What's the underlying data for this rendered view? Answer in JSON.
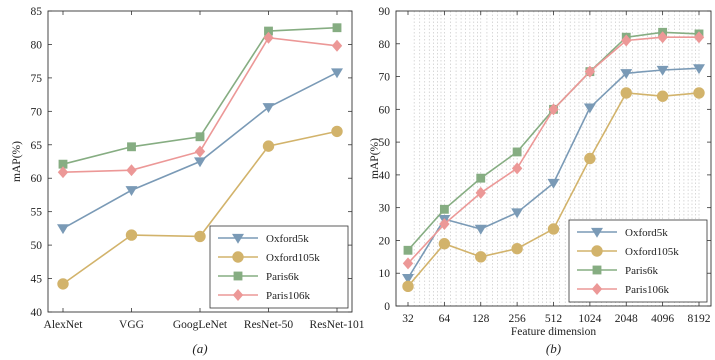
{
  "chart_data": [
    {
      "type": "line",
      "caption": "(a)",
      "categories": [
        "AlexNet",
        "VGG",
        "GoogLeNet",
        "ResNet-50",
        "ResNet-101"
      ],
      "series": [
        {
          "name": "Oxford5k",
          "color": "#7a9ab6",
          "marker": "triangle-down",
          "values": [
            52.5,
            58.2,
            62.5,
            70.6,
            75.8
          ]
        },
        {
          "name": "Oxford105k",
          "color": "#d2b36b",
          "marker": "circle",
          "values": [
            44.2,
            51.5,
            51.3,
            64.8,
            67.0
          ]
        },
        {
          "name": "Paris6k",
          "color": "#86ad82",
          "marker": "square",
          "values": [
            62.1,
            64.7,
            66.2,
            82.0,
            82.5
          ]
        },
        {
          "name": "Paris106k",
          "color": "#ec9897",
          "marker": "diamond",
          "values": [
            60.9,
            61.2,
            64.0,
            81.0,
            79.8
          ]
        }
      ],
      "xlabel": "",
      "ylabel": "mAP(%)",
      "ylim": [
        40,
        85
      ],
      "yticks": [
        40,
        45,
        50,
        55,
        60,
        65,
        70,
        75,
        80,
        85
      ],
      "grid": false,
      "legend": "bottom-right"
    },
    {
      "type": "line",
      "caption": "(b)",
      "xscale": "log2",
      "x": [
        32,
        64,
        128,
        256,
        512,
        1024,
        2048,
        4096,
        8192
      ],
      "xticks": [
        "32",
        "64",
        "128",
        "256",
        "512",
        "1024",
        "2048",
        "4096",
        "8192"
      ],
      "series": [
        {
          "name": "Oxford5k",
          "color": "#7a9ab6",
          "marker": "triangle-down",
          "values": [
            8.5,
            26.5,
            23.5,
            28.5,
            37.5,
            60.5,
            71.0,
            72.0,
            72.5
          ]
        },
        {
          "name": "Oxford105k",
          "color": "#d2b36b",
          "marker": "circle",
          "values": [
            6.0,
            19.0,
            15.0,
            17.5,
            23.5,
            45.0,
            65.0,
            64.0,
            65.0
          ]
        },
        {
          "name": "Paris6k",
          "color": "#86ad82",
          "marker": "square",
          "values": [
            17.0,
            29.5,
            39.0,
            47.0,
            60.0,
            71.5,
            82.0,
            83.5,
            83.0
          ]
        },
        {
          "name": "Paris106k",
          "color": "#ec9897",
          "marker": "diamond",
          "values": [
            13.0,
            25.0,
            34.5,
            42.0,
            60.0,
            71.5,
            81.0,
            82.0,
            82.0
          ]
        }
      ],
      "xlabel": "Feature dimension",
      "ylabel": "mAP(%)",
      "ylim": [
        0,
        90
      ],
      "yticks": [
        0,
        10,
        20,
        30,
        40,
        50,
        60,
        70,
        80,
        90
      ],
      "grid": "x-minor-dotted",
      "legend": "bottom-right"
    }
  ]
}
